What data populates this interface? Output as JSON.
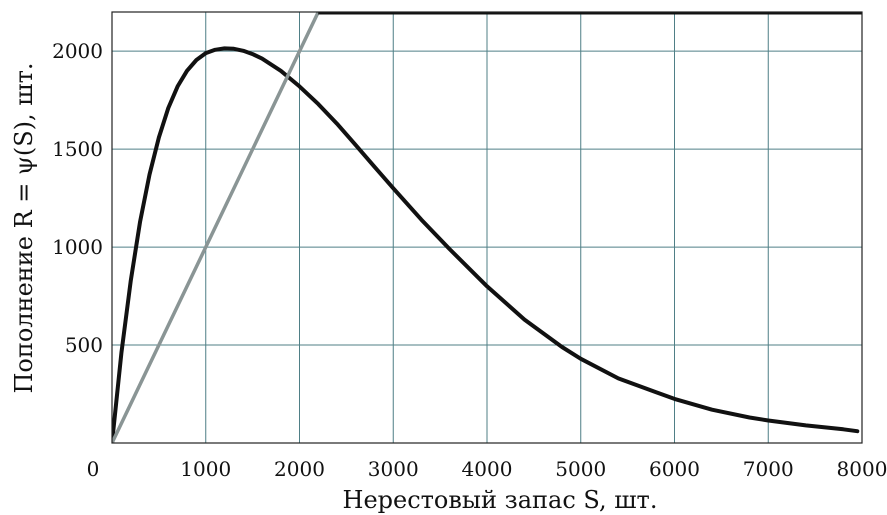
{
  "chart_data": {
    "type": "line",
    "title": "",
    "xlabel": "Нерестовый запас S, шт.",
    "ylabel": "Пополнение R = ψ(S), шт.",
    "xlim": [
      0,
      8000
    ],
    "ylim": [
      0,
      2200
    ],
    "x_ticks": [
      "1000",
      "2000",
      "3000",
      "4000",
      "5000",
      "6000",
      "7000",
      "8000"
    ],
    "y_ticks": [
      "500",
      "1000",
      "1500",
      "2000"
    ],
    "origin_label": "0",
    "grid": true,
    "series": [
      {
        "color": "#111111",
        "x": [
          0,
          100,
          200,
          300,
          400,
          500,
          600,
          700,
          800,
          900,
          1000,
          1100,
          1200,
          1300,
          1400,
          1500,
          1600,
          1800,
          2000,
          2200,
          2400,
          2600,
          2800,
          3000,
          3300,
          3600,
          4000,
          4400,
          4800,
          5000,
          5400,
          5800,
          6000,
          6400,
          6800,
          7000,
          7400,
          7800,
          7950
        ],
        "y": [
          0,
          460,
          830,
          1130,
          1370,
          1560,
          1710,
          1820,
          1900,
          1955,
          1990,
          2007,
          2014,
          2012,
          2002,
          1985,
          1962,
          1900,
          1820,
          1730,
          1630,
          1520,
          1410,
          1300,
          1140,
          990,
          800,
          630,
          490,
          430,
          330,
          260,
          225,
          170,
          130,
          115,
          90,
          70,
          60
        ]
      },
      {
        "color": "#8a9595",
        "x": [
          0,
          2200
        ],
        "y": [
          0,
          2200
        ]
      }
    ]
  }
}
